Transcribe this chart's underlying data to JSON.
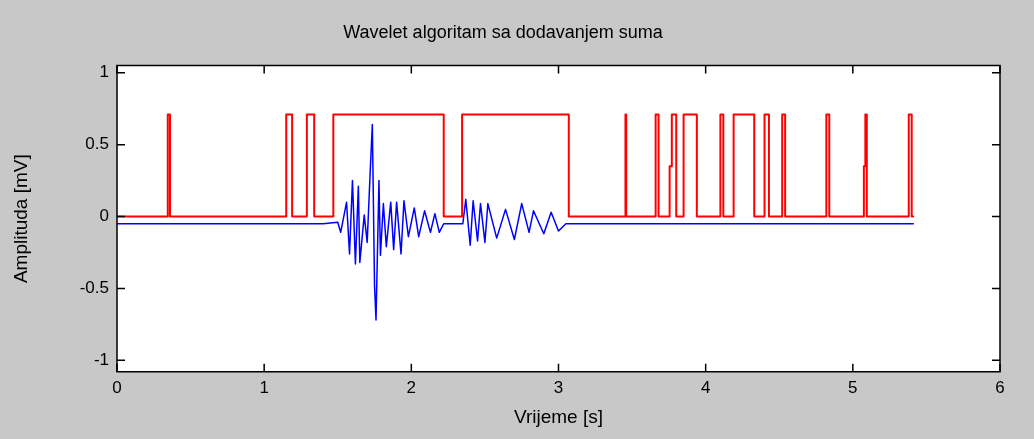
{
  "chart_data": {
    "type": "line",
    "title": "Wavelet algoritam sa dodavanjem suma",
    "xlabel": "Vrijeme [s]",
    "ylabel": "Amplituda [mV]",
    "xlim": [
      0,
      6
    ],
    "xticks": [
      0,
      1,
      2,
      3,
      4,
      5,
      6
    ],
    "ylim": [
      -1.08,
      1.05
    ],
    "yticks": [
      -1,
      -0.5,
      0,
      0.5,
      1
    ],
    "grid": false,
    "legend": false,
    "marker": "none",
    "line_style": "solid",
    "series": [
      {
        "type": "step",
        "color": "#ff0000",
        "x": [
          0,
          0.345,
          0.36,
          1.15,
          1.19,
          1.29,
          1.34,
          1.47,
          2.22,
          2.345,
          3.07,
          3.455,
          3.46,
          3.66,
          3.68,
          3.755,
          3.77,
          3.8,
          3.85,
          3.94,
          4.1,
          4.12,
          4.19,
          4.33,
          4.4,
          4.43,
          4.52,
          4.54,
          4.82,
          4.84,
          5.075,
          5.085,
          5.095,
          5.38,
          5.4,
          5.41
        ],
        "values": [
          0,
          0.71,
          0,
          0.71,
          0,
          0.71,
          0,
          0.71,
          0,
          0.71,
          0,
          0.71,
          0,
          0.71,
          0,
          0.35,
          0.71,
          0,
          0.71,
          0,
          0.71,
          0,
          0.71,
          0,
          0.71,
          0,
          0.71,
          0,
          0.71,
          0,
          0.35,
          0.71,
          0,
          0.71,
          0,
          0
        ]
      },
      {
        "color": "#0000ff",
        "x": [
          0,
          0.5,
          1,
          1.4,
          1.5,
          1.52,
          1.56,
          1.58,
          1.6,
          1.62,
          1.64,
          1.65,
          1.68,
          1.7,
          1.72,
          1.735,
          1.75,
          1.76,
          1.78,
          1.79,
          1.81,
          1.83,
          1.86,
          1.88,
          1.9,
          1.93,
          1.95,
          1.98,
          2.02,
          2.05,
          2.09,
          2.13,
          2.16,
          2.19,
          2.22,
          2.3,
          2.35,
          2.37,
          2.4,
          2.42,
          2.45,
          2.47,
          2.5,
          2.52,
          2.58,
          2.64,
          2.7,
          2.75,
          2.8,
          2.83,
          2.9,
          2.95,
          3.0,
          3.05,
          3.5,
          4,
          4.5,
          5,
          5.41
        ],
        "values": [
          -0.05,
          -0.05,
          -0.05,
          -0.05,
          -0.04,
          -0.11,
          0.1,
          -0.26,
          0.25,
          -0.33,
          0.21,
          -0.32,
          0.01,
          -0.18,
          0.3,
          0.64,
          -0.48,
          -0.72,
          0.25,
          -0.27,
          0.09,
          -0.21,
          0.1,
          -0.23,
          0.1,
          -0.26,
          0.11,
          -0.14,
          0.06,
          -0.14,
          0.04,
          -0.11,
          0.02,
          -0.11,
          -0.05,
          -0.05,
          -0.05,
          0.12,
          -0.2,
          0.11,
          -0.17,
          0.09,
          -0.18,
          0.09,
          -0.15,
          0.05,
          -0.16,
          0.09,
          -0.11,
          0.04,
          -0.12,
          0.03,
          -0.1,
          -0.05,
          -0.05,
          -0.05,
          -0.05,
          -0.05,
          -0.05
        ]
      }
    ]
  }
}
